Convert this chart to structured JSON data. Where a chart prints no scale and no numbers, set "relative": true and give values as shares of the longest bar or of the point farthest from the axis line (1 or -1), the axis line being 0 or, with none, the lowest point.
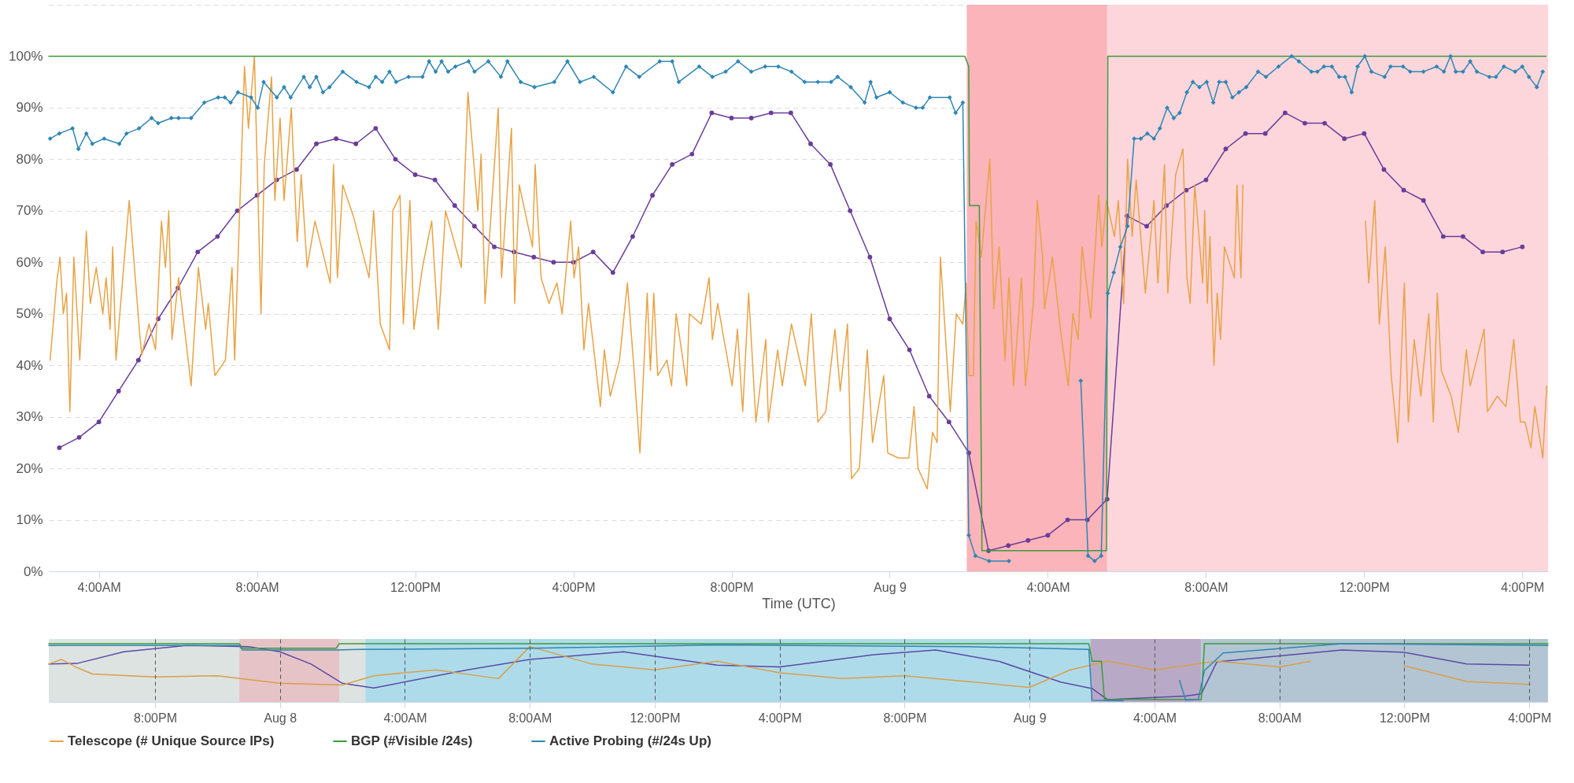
{
  "chart_data": [
    {
      "type": "line",
      "xlabel": "Time (UTC)",
      "xlim": [
        "--08-08T02:44",
        "--08-09T16:39"
      ],
      "xticks": [
        {
          "value": "--08-08T04:00",
          "label": "4:00AM"
        },
        {
          "value": "--08-08T08:00",
          "label": "8:00AM"
        },
        {
          "value": "--08-08T12:00",
          "label": "12:00PM"
        },
        {
          "value": "--08-08T16:00",
          "label": "4:00PM"
        },
        {
          "value": "--08-08T20:00",
          "label": "8:00PM"
        },
        {
          "value": "--08-09T00:00",
          "label": "Aug 9"
        },
        {
          "value": "--08-09T04:00",
          "label": "4:00AM"
        },
        {
          "value": "--08-09T08:00",
          "label": "8:00AM"
        },
        {
          "value": "--08-09T12:00",
          "label": "12:00PM"
        },
        {
          "value": "--08-09T16:00",
          "label": "4:00PM"
        }
      ],
      "ylim": [
        0,
        110
      ],
      "yticks": [
        {
          "value": 0,
          "label": "0%"
        },
        {
          "value": 10,
          "label": "10%"
        },
        {
          "value": 20,
          "label": "20%"
        },
        {
          "value": 30,
          "label": "30%"
        },
        {
          "value": 40,
          "label": "40%"
        },
        {
          "value": 50,
          "label": "50%"
        },
        {
          "value": 60,
          "label": "60%"
        },
        {
          "value": 70,
          "label": "70%"
        },
        {
          "value": 80,
          "label": "80%"
        },
        {
          "value": 90,
          "label": "90%"
        },
        {
          "value": 100,
          "label": "100%"
        },
        {
          "value": 110,
          "label": null
        }
      ],
      "grid": "y",
      "legend": "bottom",
      "bands": [
        {
          "axis": "x",
          "from": "--08-09T01:57",
          "to": "--08-09T05:30",
          "color": "#fbb4b9"
        },
        {
          "axis": "x",
          "from": "--08-09T05:30",
          "to": "--08-09T16:39",
          "color": "#fdd6db"
        }
      ],
      "series": [
        {
          "color": "#6a3d9a",
          "marker": "circle",
          "x": [
            "--08-08T03:00",
            "--08-08T03:30",
            "--08-08T04:00",
            "--08-08T04:30",
            "--08-08T05:00",
            "--08-08T05:30",
            "--08-08T06:00",
            "--08-08T06:30",
            "--08-08T07:00",
            "--08-08T07:30",
            "--08-08T08:00",
            "--08-08T08:30",
            "--08-08T09:00",
            "--08-08T09:30",
            "--08-08T10:00",
            "--08-08T10:30",
            "--08-08T11:00",
            "--08-08T11:30",
            "--08-08T12:00",
            "--08-08T12:30",
            "--08-08T13:00",
            "--08-08T13:30",
            "--08-08T14:00",
            "--08-08T14:30",
            "--08-08T15:00",
            "--08-08T15:30",
            "--08-08T16:00",
            "--08-08T16:30",
            "--08-08T17:00",
            "--08-08T17:30",
            "--08-08T18:00",
            "--08-08T18:30",
            "--08-08T19:00",
            "--08-08T19:30",
            "--08-08T20:00",
            "--08-08T20:30",
            "--08-08T21:00",
            "--08-08T21:30",
            "--08-08T22:00",
            "--08-08T22:30",
            "--08-08T23:00",
            "--08-08T23:30",
            "--08-09T00:00",
            "--08-09T00:30",
            "--08-09T01:00",
            "--08-09T01:30",
            "--08-09T02:00",
            "--08-09T02:30",
            "--08-09T03:00",
            "--08-09T03:30",
            "--08-09T04:00",
            "--08-09T04:30",
            "--08-09T05:00",
            "--08-09T05:30",
            "--08-09T06:00",
            "--08-09T06:30",
            "--08-09T07:00",
            "--08-09T07:30",
            "--08-09T08:00",
            "--08-09T08:30",
            "--08-09T09:00",
            "--08-09T09:30",
            "--08-09T10:00",
            "--08-09T10:30",
            "--08-09T11:00",
            "--08-09T11:30",
            "--08-09T12:00",
            "--08-09T12:30",
            "--08-09T13:00",
            "--08-09T13:30",
            "--08-09T14:00",
            "--08-09T14:30",
            "--08-09T15:00",
            "--08-09T15:30",
            "--08-09T16:00"
          ],
          "values": [
            24,
            26,
            29,
            35,
            41,
            49,
            55,
            62,
            65,
            70,
            73,
            76,
            78,
            83,
            84,
            83,
            86,
            80,
            77,
            76,
            71,
            67,
            63,
            62,
            61,
            60,
            60,
            62,
            58,
            65,
            73,
            79,
            81,
            89,
            88,
            88,
            89,
            89,
            83,
            79,
            70,
            61,
            49,
            43,
            34,
            29,
            23,
            4,
            5,
            6,
            7,
            10,
            10,
            14,
            69,
            67,
            71,
            74,
            76,
            82,
            85,
            85,
            89,
            87,
            87,
            84,
            85,
            78,
            74,
            72,
            65,
            65,
            62,
            62,
            63
          ]
        },
        {
          "name": "Telescope (# Unique Source IPs)",
          "color": "#e8a345",
          "marker": "none",
          "x": [
            "--08-08T02:46",
            "--08-08T02:56",
            "--08-08T03:01",
            "--08-08T03:06",
            "--08-08T03:11",
            "--08-08T03:16",
            "--08-08T03:22",
            "--08-08T03:31",
            "--08-08T03:41",
            "--08-08T03:47",
            "--08-08T03:56",
            "--08-08T04:06",
            "--08-08T04:11",
            "--08-08T04:17",
            "--08-08T04:21",
            "--08-08T04:26",
            "--08-08T04:46",
            "--08-08T05:02",
            "--08-08T05:05",
            "--08-08T05:16",
            "--08-08T05:26",
            "--08-08T05:35",
            "--08-08T05:41",
            "--08-08T05:46",
            "--08-08T05:51",
            "--08-08T06:01",
            "--08-08T06:20",
            "--08-08T06:31",
            "--08-08T06:42",
            "--08-08T06:46",
            "--08-08T06:56",
            "--08-08T07:12",
            "--08-08T07:22",
            "--08-08T07:26",
            "--08-08T07:41",
            "--08-08T07:47",
            "--08-08T07:56",
            "--08-08T08:06",
            "--08-08T08:11",
            "--08-08T08:22",
            "--08-08T08:27",
            "--08-08T08:35",
            "--08-08T08:41",
            "--08-08T08:52",
            "--08-08T09:01",
            "--08-08T09:07",
            "--08-08T09:16",
            "--08-08T09:28",
            "--08-08T09:51",
            "--08-08T09:56",
            "--08-08T10:02",
            "--08-08T10:10",
            "--08-08T10:26",
            "--08-08T10:50",
            "--08-08T10:57",
            "--08-08T11:07",
            "--08-08T11:21",
            "--08-08T11:26",
            "--08-08T11:37",
            "--08-08T11:42",
            "--08-08T11:52",
            "--08-08T11:58",
            "--08-08T12:11",
            "--08-08T12:25",
            "--08-08T12:35",
            "--08-08T12:46",
            "--08-08T13:10",
            "--08-08T13:20",
            "--08-08T13:35",
            "--08-08T13:40",
            "--08-08T13:46",
            "--08-08T14:06",
            "--08-08T14:11",
            "--08-08T14:26",
            "--08-08T14:31",
            "--08-08T14:38",
            "--08-08T14:58",
            "--08-08T15:02",
            "--08-08T15:11",
            "--08-08T15:23",
            "--08-08T15:35",
            "--08-08T15:43",
            "--08-08T15:56",
            "--08-08T16:01",
            "--08-08T16:08",
            "--08-08T16:16",
            "--08-08T16:23",
            "--08-08T16:41",
            "--08-08T16:47",
            "--08-08T16:56",
            "--08-08T17:10",
            "--08-08T17:22",
            "--08-08T17:31",
            "--08-08T17:41",
            "--08-08T17:52",
            "--08-08T17:57",
            "--08-08T18:02",
            "--08-08T18:08",
            "--08-08T18:22",
            "--08-08T18:29",
            "--08-08T18:36",
            "--08-08T18:52",
            "--08-08T18:56",
            "--08-08T19:14",
            "--08-08T19:26",
            "--08-08T19:31",
            "--08-08T19:39",
            "--08-08T20:01",
            "--08-08T20:09",
            "--08-08T20:17",
            "--08-08T20:26",
            "--08-08T20:37",
            "--08-08T20:52",
            "--08-08T20:56",
            "--08-08T21:10",
            "--08-08T21:17",
            "--08-08T21:31",
            "--08-08T21:52",
            "--08-08T22:01",
            "--08-08T22:11",
            "--08-08T22:23",
            "--08-08T22:37",
            "--08-08T22:45",
            "--08-08T22:56",
            "--08-08T23:02",
            "--08-08T23:14",
            "--08-08T23:26",
            "--08-08T23:34",
            "--08-08T23:51",
            "--08-08T23:57",
            "--08-09T00:13",
            "--08-09T00:29",
            "--08-09T00:37",
            "--08-09T00:43",
            "--08-09T00:57",
            "--08-09T01:05",
            "--08-09T01:12",
            "--08-09T01:17",
            "--08-09T01:32",
            "--08-09T01:41",
            "--08-09T01:51",
            "--08-09T01:56",
            "--08-09T02:00",
            "--08-09T02:07",
            "--08-09T02:11",
            "--08-09T02:19",
            "--08-09T02:32",
            "--08-09T02:38",
            "--08-09T02:46",
            "--08-09T02:55",
            "--08-09T03:01",
            "--08-09T03:08",
            "--08-09T03:20",
            "--08-09T03:26",
            "--08-09T03:38",
            "--08-09T03:44",
            "--08-09T03:52",
            "--08-09T03:55",
            "--08-09T04:07",
            "--08-09T04:20",
            "--08-09T04:31",
            "--08-09T04:38",
            "--08-09T04:46",
            "--08-09T04:52",
            "--08-09T05:05",
            "--08-09T05:17",
            "--08-09T05:22",
            "--08-09T05:29",
            "--08-09T05:41",
            "--08-09T05:47",
            "--08-09T05:55",
            "--08-09T06:01",
            "--08-09T06:08",
            "--08-09T06:14",
            "--08-09T06:28",
            "--08-09T06:41",
            "--08-09T06:47",
            "--08-09T06:57",
            "--08-09T07:02",
            "--08-09T07:14",
            "--08-09T07:25",
            "--08-09T07:31",
            "--08-09T07:36",
            "--08-09T07:43",
            "--08-09T07:55",
            "--08-09T07:58",
            "--08-09T08:02",
            "--08-09T08:06",
            "--08-09T08:12",
            "--08-09T08:17",
            "--08-09T08:22",
            "--08-09T08:28",
            "--08-09T08:43",
            "--08-09T08:47",
            "--08-09T08:53",
            "--08-09T08:56",
            "--08-09T09:30",
            "--08-09T12:02",
            "--08-09T12:07",
            "--08-09T12:16",
            "--08-09T12:23",
            "--08-09T12:32",
            "--08-09T12:41",
            "--08-09T12:51",
            "--08-09T13:01",
            "--08-09T13:07",
            "--08-09T13:16",
            "--08-09T13:26",
            "--08-09T13:38",
            "--08-09T13:45",
            "--08-09T13:51",
            "--08-09T13:57",
            "--08-09T14:12",
            "--08-09T14:23",
            "--08-09T14:35",
            "--08-09T14:41",
            "--08-09T15:02",
            "--08-09T15:07",
            "--08-09T15:22",
            "--08-09T15:35",
            "--08-09T15:47",
            "--08-09T15:57",
            "--08-09T16:04",
            "--08-09T16:13",
            "--08-09T16:19",
            "--08-09T16:31",
            "--08-09T16:37"
          ],
          "values": [
            41,
            56,
            61,
            50,
            54,
            31,
            61,
            41,
            66,
            52,
            59,
            50,
            57,
            47,
            63,
            41,
            72,
            46,
            42,
            48,
            43,
            68,
            59,
            70,
            45,
            57,
            36,
            59,
            47,
            52,
            38,
            41,
            59,
            41,
            98,
            86,
            100,
            50,
            79,
            96,
            72,
            88,
            72,
            90,
            64,
            77,
            59,
            68,
            56,
            79,
            57,
            75,
            69,
            57,
            70,
            48,
            43,
            70,
            73,
            48,
            72,
            47,
            59,
            68,
            47,
            70,
            59,
            93,
            70,
            81,
            52,
            90,
            57,
            86,
            52,
            75,
            63,
            79,
            57,
            52,
            56,
            50,
            68,
            57,
            63,
            43,
            52,
            32,
            43,
            34,
            41,
            56,
            41,
            23,
            54,
            39,
            54,
            38,
            41,
            36,
            50,
            36,
            50,
            48,
            57,
            45,
            52,
            36,
            47,
            31,
            54,
            29,
            45,
            29,
            43,
            36,
            48,
            36,
            50,
            29,
            31,
            47,
            35,
            48,
            18,
            20,
            43,
            25,
            38,
            23,
            22,
            22,
            32,
            20,
            16,
            27,
            25,
            61,
            31,
            50,
            48,
            56,
            38,
            38,
            68,
            61,
            80,
            51,
            63,
            41,
            57,
            36,
            57,
            36,
            52,
            72,
            61,
            51,
            61,
            46,
            36,
            50,
            45,
            63,
            49,
            73,
            63,
            72,
            65,
            72,
            52,
            80,
            65,
            76,
            54,
            72,
            56,
            79,
            54,
            77,
            82,
            57,
            52,
            75,
            56,
            70,
            52,
            65,
            40,
            54,
            45,
            63,
            57,
            75,
            57,
            75,
            null,
            68,
            56,
            72,
            48,
            63,
            38,
            25,
            56,
            29,
            45,
            34,
            50,
            29,
            54,
            39,
            34,
            27,
            43,
            36,
            47,
            31,
            34,
            32,
            45,
            29,
            29,
            24,
            32,
            22,
            36
          ]
        },
        {
          "name": "BGP (#Visible /24s)",
          "color": "#3d9a3a",
          "marker": "none",
          "x": [
            "--08-08T02:44",
            "--08-09T01:54",
            "--08-09T02:00",
            "--08-09T02:01",
            "--08-09T02:16",
            "--08-09T02:20",
            "--08-09T05:29",
            "--08-09T05:31",
            "--08-09T16:36"
          ],
          "values": [
            100,
            100,
            98,
            71,
            71,
            4,
            4,
            100,
            100
          ]
        },
        {
          "name": "Active Probing (#/24s Up)",
          "color": "#2f86b4",
          "marker": "diamond",
          "x": [
            "--08-08T02:46",
            "--08-08T03:00",
            "--08-08T03:20",
            "--08-08T03:29",
            "--08-08T03:41",
            "--08-08T03:50",
            "--08-08T04:08",
            "--08-08T04:31",
            "--08-08T04:42",
            "--08-08T05:01",
            "--08-08T05:20",
            "--08-08T05:30",
            "--08-08T05:50",
            "--08-08T06:01",
            "--08-08T06:20",
            "--08-08T06:40",
            "--08-08T07:01",
            "--08-08T07:11",
            "--08-08T07:20",
            "--08-08T07:31",
            "--08-08T07:51",
            "--08-08T08:01",
            "--08-08T08:10",
            "--08-08T08:30",
            "--08-08T08:41",
            "--08-08T08:51",
            "--08-08T09:11",
            "--08-08T09:20",
            "--08-08T09:30",
            "--08-08T09:40",
            "--08-08T09:50",
            "--08-08T10:10",
            "--08-08T10:31",
            "--08-08T10:50",
            "--08-08T11:00",
            "--08-08T11:10",
            "--08-08T11:21",
            "--08-08T11:31",
            "--08-08T11:50",
            "--08-08T12:11",
            "--08-08T12:21",
            "--08-08T12:31",
            "--08-08T12:40",
            "--08-08T12:50",
            "--08-08T13:01",
            "--08-08T13:21",
            "--08-08T13:30",
            "--08-08T13:51",
            "--08-08T14:10",
            "--08-08T14:20",
            "--08-08T14:40",
            "--08-08T15:01",
            "--08-08T15:31",
            "--08-08T15:51",
            "--08-08T16:10",
            "--08-08T16:31",
            "--08-08T17:00",
            "--08-08T17:20",
            "--08-08T17:40",
            "--08-08T18:11",
            "--08-08T18:30",
            "--08-08T18:40",
            "--08-08T19:11",
            "--08-08T19:31",
            "--08-08T19:51",
            "--08-08T20:10",
            "--08-08T20:30",
            "--08-08T20:51",
            "--08-08T21:11",
            "--08-08T21:31",
            "--08-08T21:51",
            "--08-08T22:11",
            "--08-08T22:31",
            "--08-08T22:41",
            "--08-08T23:01",
            "--08-08T23:22",
            "--08-08T23:31",
            "--08-08T23:40",
            "--08-09T00:00",
            "--08-09T00:20",
            "--08-09T00:40",
            "--08-09T00:50",
            "--08-09T01:01",
            "--08-09T01:31",
            "--08-09T01:40",
            "--08-09T01:51",
            "--08-09T02:00",
            "--08-09T02:10",
            "--08-09T02:31",
            "--08-09T03:01",
            "--08-09T04:00",
            "--08-09T04:50",
            "--08-09T05:01",
            "--08-09T05:11",
            "--08-09T05:21",
            "--08-09T05:31",
            "--08-09T05:40",
            "--08-09T05:50",
            "--08-09T06:01",
            "--08-09T06:11",
            "--08-09T06:21",
            "--08-09T06:31",
            "--08-09T06:41",
            "--08-09T06:50",
            "--08-09T07:01",
            "--08-09T07:11",
            "--08-09T07:20",
            "--08-09T07:31",
            "--08-09T07:40",
            "--08-09T07:50",
            "--08-09T08:01",
            "--08-09T08:11",
            "--08-09T08:20",
            "--08-09T08:30",
            "--08-09T08:40",
            "--08-09T08:50",
            "--08-09T09:01",
            "--08-09T09:19",
            "--08-09T09:31",
            "--08-09T09:50",
            "--08-09T10:10",
            "--08-09T10:21",
            "--08-09T10:40",
            "--08-09T10:49",
            "--08-09T10:59",
            "--08-09T11:11",
            "--08-09T11:22",
            "--08-09T11:31",
            "--08-09T11:41",
            "--08-09T11:50",
            "--08-09T12:01",
            "--08-09T12:11",
            "--08-09T12:31",
            "--08-09T12:40",
            "--08-09T12:59",
            "--08-09T13:10",
            "--08-09T13:30",
            "--08-09T13:50",
            "--08-09T14:01",
            "--08-09T14:11",
            "--08-09T14:19",
            "--08-09T14:30",
            "--08-09T14:41",
            "--08-09T14:51",
            "--08-09T15:10",
            "--08-09T15:20",
            "--08-09T15:32",
            "--08-09T15:49",
            "--08-09T16:00",
            "--08-09T16:10",
            "--08-09T16:22",
            "--08-09T16:31"
          ],
          "values": [
            84,
            85,
            86,
            82,
            85,
            83,
            84,
            83,
            85,
            86,
            88,
            87,
            88,
            88,
            88,
            91,
            92,
            92,
            91,
            93,
            92,
            90,
            95,
            92,
            94,
            92,
            96,
            94,
            96,
            93,
            94,
            97,
            95,
            94,
            96,
            95,
            97,
            95,
            96,
            96,
            99,
            97,
            99,
            97,
            98,
            99,
            97,
            99,
            96,
            99,
            95,
            94,
            95,
            99,
            95,
            96,
            93,
            98,
            96,
            99,
            99,
            95,
            98,
            96,
            97,
            99,
            97,
            98,
            98,
            97,
            95,
            95,
            95,
            96,
            94,
            91,
            95,
            92,
            93,
            91,
            90,
            90,
            92,
            92,
            89,
            91,
            7,
            3,
            2,
            2,
            null,
            37,
            3,
            2,
            3,
            54,
            58,
            63,
            67,
            84,
            84,
            85,
            84,
            86,
            90,
            88,
            89,
            93,
            95,
            94,
            95,
            91,
            95,
            95,
            92,
            93,
            94,
            97,
            96,
            98,
            100,
            99,
            97,
            97,
            98,
            98,
            96,
            96,
            93,
            98,
            100,
            97,
            96,
            98,
            98,
            97,
            97,
            98,
            97,
            100,
            97,
            97,
            99,
            97,
            96,
            96,
            98,
            97,
            98,
            96,
            94,
            97
          ]
        }
      ]
    },
    {
      "type": "line",
      "relative": true,
      "tick_labels": "x",
      "grid": "x",
      "xlim": [
        "--08-07T16:36",
        "--08-09T16:36"
      ],
      "xticks": [
        {
          "value": "--08-07T20:00",
          "label": "8:00PM"
        },
        {
          "value": "--08-08T00:00",
          "label": "Aug 8"
        },
        {
          "value": "--08-08T04:00",
          "label": "4:00AM"
        },
        {
          "value": "--08-08T08:00",
          "label": "8:00AM"
        },
        {
          "value": "--08-08T12:00",
          "label": "12:00PM"
        },
        {
          "value": "--08-08T16:00",
          "label": "4:00PM"
        },
        {
          "value": "--08-08T20:00",
          "label": "8:00PM"
        },
        {
          "value": "--08-09T00:00",
          "label": "Aug 9"
        },
        {
          "value": "--08-09T04:00",
          "label": "4:00AM"
        },
        {
          "value": "--08-09T08:00",
          "label": "8:00AM"
        },
        {
          "value": "--08-09T12:00",
          "label": "12:00PM"
        },
        {
          "value": "--08-09T16:00",
          "label": "4:00PM"
        }
      ],
      "bands": [
        {
          "axis": "x",
          "from": "--08-07T16:36",
          "to": "--08-08T02:44",
          "color": "#dde3e1"
        },
        {
          "axis": "x",
          "from": "--08-07T22:42",
          "to": "--08-08T01:54",
          "color": "#e6c3c6"
        },
        {
          "axis": "x",
          "from": "--08-08T02:44",
          "to": "--08-09T01:57",
          "color": "#aedbea"
        },
        {
          "axis": "x",
          "from": "--08-09T01:57",
          "to": "--08-09T05:30",
          "color": "#b8aac6"
        },
        {
          "axis": "x",
          "from": "--08-09T05:30",
          "to": "--08-09T16:36",
          "color": "#b3c5d3"
        }
      ],
      "series": [
        {
          "color": "#5b4aa8",
          "x": [
            "--08-07T16:36",
            "--08-07T17:30",
            "--08-07T19:00",
            "--08-07T21:00",
            "--08-07T23:00",
            "--08-08T00:00",
            "--08-08T01:00",
            "--08-08T02:00",
            "--08-08T03:00",
            "--08-08T06:00",
            "--08-08T08:00",
            "--08-08T11:00",
            "--08-08T14:00",
            "--08-08T16:00",
            "--08-08T19:00",
            "--08-08T21:00",
            "--08-08T23:00",
            "--08-09T01:00",
            "--08-09T02:00",
            "--08-09T02:30",
            "--08-09T05:00",
            "--08-09T05:30",
            "--08-09T06:00",
            "--08-09T10:00",
            "--08-09T12:00",
            "--08-09T14:00",
            "--08-09T16:00"
          ],
          "values": [
            0.65,
            0.66,
            0.86,
            0.97,
            0.95,
            0.86,
            0.65,
            0.32,
            0.24,
            0.55,
            0.73,
            0.86,
            0.63,
            0.6,
            0.81,
            0.89,
            0.7,
            0.34,
            0.23,
            0.04,
            0.1,
            0.14,
            0.69,
            0.89,
            0.85,
            0.65,
            0.63
          ]
        },
        {
          "color": "#d9a04a",
          "x": [
            "--08-07T16:36",
            "--08-07T17:00",
            "--08-07T17:30",
            "--08-07T18:00",
            "--08-07T20:00",
            "--08-07T22:00",
            "--08-08T00:00",
            "--08-08T02:00",
            "--08-08T03:00",
            "--08-08T05:00",
            "--08-08T07:00",
            "--08-08T08:00",
            "--08-08T10:00",
            "--08-08T12:00",
            "--08-08T14:00",
            "--08-08T16:00",
            "--08-08T18:00",
            "--08-08T20:00",
            "--08-08T22:00",
            "--08-09T00:00",
            "--08-09T01:18",
            "--08-09T02:30",
            "--08-09T04:00",
            "--08-09T06:00",
            "--08-09T08:00",
            "--08-09T09:00",
            "--08-09T09:30",
            "--08-09T12:00",
            "--08-09T14:00",
            "--08-09T16:00"
          ],
          "values": [
            0.65,
            0.73,
            0.59,
            0.48,
            0.43,
            0.45,
            0.32,
            0.29,
            0.45,
            0.55,
            0.4,
            0.95,
            0.65,
            0.55,
            0.7,
            0.5,
            0.4,
            0.45,
            0.35,
            0.25,
            0.55,
            0.7,
            0.55,
            0.7,
            0.6,
            0.7,
            null,
            0.62,
            0.35,
            0.3
          ]
        },
        {
          "color": "#3d9a3a",
          "x": [
            "--08-07T16:36",
            "--08-07T22:42",
            "--08-07T22:48",
            "--08-08T01:48",
            "--08-08T01:54",
            "--08-09T01:54",
            "--08-09T02:00",
            "--08-09T02:18",
            "--08-09T02:24",
            "--08-09T05:30",
            "--08-09T05:36",
            "--08-09T16:36"
          ],
          "values": [
            1,
            1,
            0.92,
            0.92,
            1,
            1,
            0.7,
            0.7,
            0.04,
            0.04,
            1,
            1
          ]
        },
        {
          "color": "#2f86b4",
          "x": [
            "--08-07T16:36",
            "--08-07T22:42",
            "--08-07T22:48",
            "--08-08T01:48",
            "--08-08T02:30",
            "--08-08T08:00",
            "--08-08T14:00",
            "--08-08T22:00",
            "--08-09T01:54",
            "--08-09T02:00",
            "--08-09T03:00",
            "--08-09T03:30",
            "--08-09T04:48",
            "--08-09T05:00",
            "--08-09T05:24",
            "--08-09T05:36",
            "--08-09T06:12",
            "--08-09T10:00",
            "--08-09T16:36"
          ],
          "values": [
            0.97,
            0.97,
            0.89,
            0.89,
            0.9,
            0.92,
            0.98,
            0.95,
            0.9,
            0.03,
            0.02,
            null,
            0.37,
            0.03,
            0.04,
            0.54,
            0.84,
            1,
            0.97
          ]
        }
      ]
    }
  ]
}
